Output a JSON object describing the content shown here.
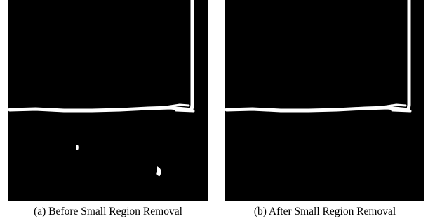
{
  "figures": [
    {
      "caption": "(a) Before Small Region Removal"
    },
    {
      "caption": "(b) After Small Region Removal"
    }
  ]
}
